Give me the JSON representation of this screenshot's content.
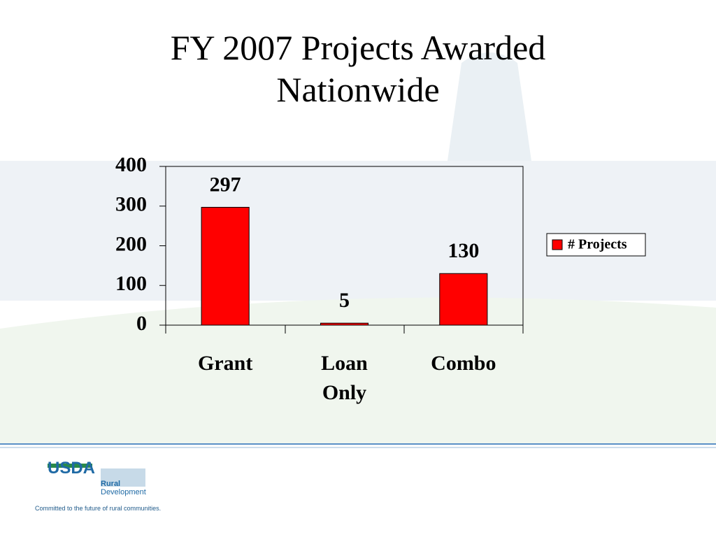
{
  "chart_data": {
    "type": "bar",
    "title": "FY 2007 Projects Awarded Nationwide",
    "categories": [
      "Grant",
      "Loan Only",
      "Combo"
    ],
    "series": [
      {
        "name": "# Projects",
        "color": "#ff0000",
        "values": [
          297,
          5,
          130
        ]
      }
    ],
    "ylim": [
      0,
      400
    ],
    "yticks": [
      0,
      100,
      200,
      300,
      400
    ],
    "grid": false,
    "legend": "right"
  },
  "footer": {
    "logo": "USDA",
    "agency_line1": "Rural",
    "agency_line2": "Development",
    "tagline": "Committed to the future of rural communities."
  }
}
